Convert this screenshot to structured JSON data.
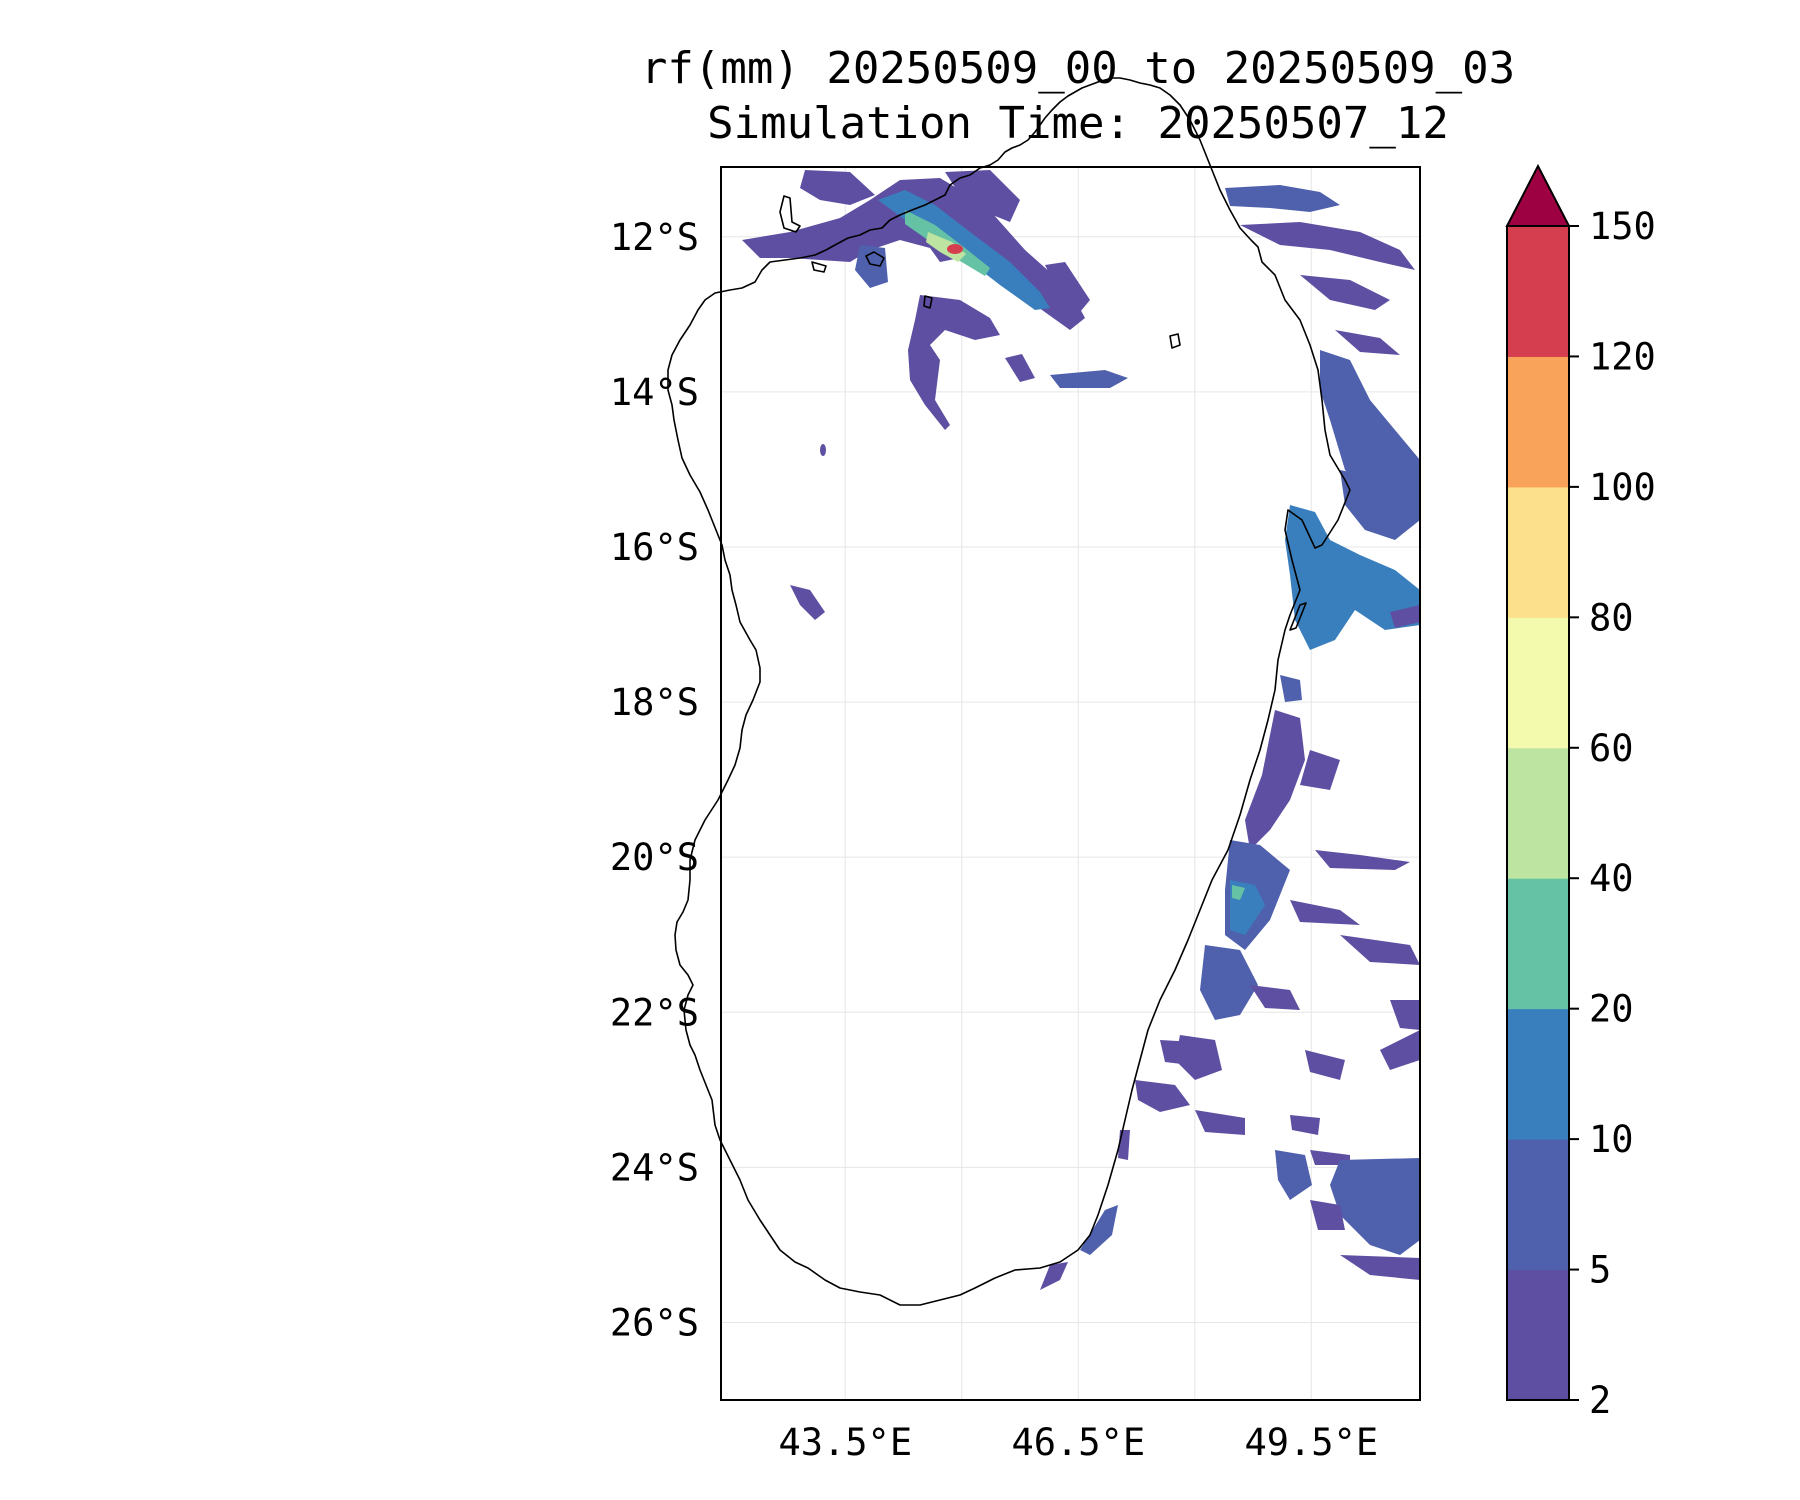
{
  "title": {
    "line1": "rf(mm) 20250509_00 to 20250509_03",
    "line2": "Simulation Time: 20250507_12"
  },
  "map": {
    "lon_range": [
      41.9,
      50.9
    ],
    "lat_range": [
      -27.0,
      -11.1
    ],
    "lon_ticks": [
      {
        "value": 43.5,
        "label": "43.5°E"
      },
      {
        "value": 46.5,
        "label": "46.5°E"
      },
      {
        "value": 49.5,
        "label": "49.5°E"
      }
    ],
    "lat_ticks": [
      {
        "value": -12,
        "label": "12°S"
      },
      {
        "value": -14,
        "label": "14°S"
      },
      {
        "value": -16,
        "label": "16°S"
      },
      {
        "value": -18,
        "label": "18°S"
      },
      {
        "value": -20,
        "label": "20°S"
      },
      {
        "value": -22,
        "label": "22°S"
      },
      {
        "value": -24,
        "label": "24°S"
      },
      {
        "value": -26,
        "label": "26°S"
      }
    ],
    "minor_lon_gridlines": [
      45,
      48,
      51
    ],
    "grid": true
  },
  "colorbar": {
    "levels": [
      "2",
      "5",
      "10",
      "20",
      "40",
      "60",
      "80",
      "100",
      "120",
      "150"
    ],
    "colors": [
      "#5e4fa2",
      "#4f61ad",
      "#3a7fbd",
      "#66c2a5",
      "#bde4a0",
      "#f3faae",
      "#fde08b",
      "#f9a35a",
      "#d53e4f"
    ],
    "extend_color": "#9e0142",
    "extend": "max"
  },
  "rain_colors": {
    "light": "#5e4fa2",
    "moderate": "#4f61ad",
    "heavy": "#3a7fbd",
    "very_heavy": "#66c2a5",
    "intense": "#bde4a0",
    "extreme": "#f3faae",
    "peak": "#d53e4f"
  }
}
